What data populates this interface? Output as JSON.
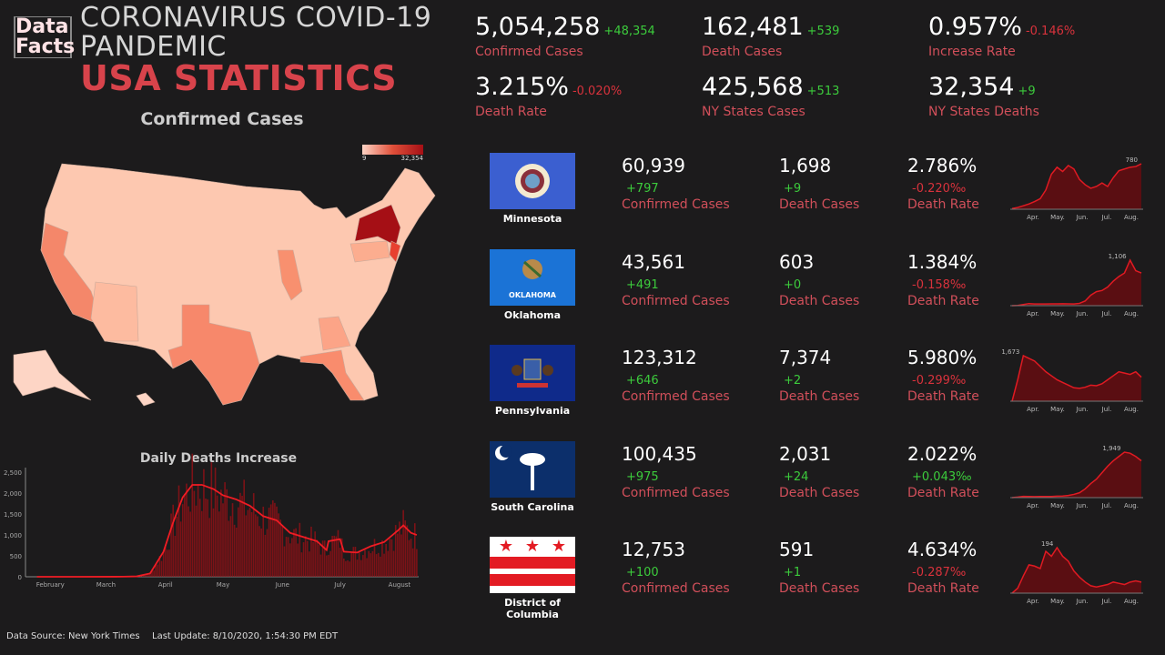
{
  "logo": {
    "line1": "Data",
    "line2": "Facts"
  },
  "header": {
    "title": "CORONAVIRUS COVID-19 PANDEMIC",
    "subtitle": "USA STATISTICS"
  },
  "colors": {
    "accent": "#d8434b",
    "positive": "#3ccb3c",
    "negative": "#d8323c",
    "label": "#d14f5a",
    "background": "#1c1b1c"
  },
  "map": {
    "title": "Confirmed Cases",
    "legend_min": "9",
    "legend_max": "32,354"
  },
  "stats": [
    {
      "value": "5,054,258",
      "delta": "+48,354",
      "delta_sign": "up",
      "label": "Confirmed Cases"
    },
    {
      "value": "162,481",
      "delta": "+539",
      "delta_sign": "up",
      "label": "Death Cases"
    },
    {
      "value": "0.957%",
      "delta": "-0.146%",
      "delta_sign": "down",
      "label": "Increase Rate"
    },
    {
      "value": "3.215%",
      "delta": "-0.020%",
      "delta_sign": "down",
      "label": "Death Rate"
    },
    {
      "value": "425,568",
      "delta": "+513",
      "delta_sign": "up",
      "label": "NY States Cases"
    },
    {
      "value": "32,354",
      "delta": "+9",
      "delta_sign": "up",
      "label": "NY States Deaths"
    }
  ],
  "states": [
    {
      "name": "Minnesota",
      "flag": "minnesota-flag",
      "cases": "60,939",
      "cases_delta": "+797",
      "deaths": "1,698",
      "deaths_delta": "+9",
      "rate": "2.786%",
      "rate_delta": "-0.220‰",
      "rate_sign": "down",
      "labels": [
        "Confirmed Cases",
        "Death Cases",
        "Death Rate"
      ],
      "peak": "780",
      "spark": [
        2,
        5,
        10,
        15,
        22,
        30,
        55,
        100,
        120,
        108,
        125,
        115,
        85,
        70,
        60,
        65,
        75,
        65,
        90,
        110,
        115,
        120,
        122,
        130
      ]
    },
    {
      "name": "Oklahoma",
      "flag": "oklahoma-flag",
      "flag_text": "OKLAHOMA",
      "cases": "43,561",
      "cases_delta": "+491",
      "deaths": "603",
      "deaths_delta": "+0",
      "rate": "1.384%",
      "rate_delta": "-0.158‰",
      "rate_sign": "down",
      "labels": [
        "Confirmed Cases",
        "Death Cases",
        "Death Rate"
      ],
      "peak": "1,106",
      "spark": [
        0,
        2,
        10,
        18,
        15,
        15,
        15,
        16,
        16,
        17,
        16,
        15,
        20,
        40,
        90,
        120,
        130,
        160,
        210,
        250,
        280,
        390,
        300,
        280
      ]
    },
    {
      "name": "Pennsylvania",
      "flag": "pennsylvania-flag",
      "cases": "123,312",
      "cases_delta": "+646",
      "deaths": "7,374",
      "deaths_delta": "+2",
      "rate": "5.980%",
      "rate_delta": "-0.299‰",
      "rate_sign": "down",
      "labels": [
        "Confirmed Cases",
        "Death Cases",
        "Death Rate"
      ],
      "peak": "1,673",
      "spark": [
        0,
        80,
        170,
        160,
        150,
        130,
        110,
        95,
        80,
        70,
        60,
        50,
        48,
        52,
        60,
        58,
        65,
        80,
        95,
        110,
        105,
        100,
        110,
        90
      ]
    },
    {
      "name": "South Carolina",
      "flag": "south-carolina-flag",
      "cases": "100,435",
      "cases_delta": "+975",
      "deaths": "2,031",
      "deaths_delta": "+24",
      "rate": "2.022%",
      "rate_delta": "+0.043‰",
      "rate_sign": "up",
      "labels": [
        "Confirmed Cases",
        "Death Cases",
        "Death Rate"
      ],
      "peak": "1,949",
      "spark": [
        0,
        5,
        12,
        10,
        9,
        10,
        10,
        11,
        14,
        15,
        20,
        30,
        45,
        80,
        130,
        170,
        230,
        290,
        340,
        380,
        420,
        410,
        380,
        340
      ]
    },
    {
      "name": "District of Columbia",
      "flag": "dc-flag",
      "cases": "12,753",
      "cases_delta": "+100",
      "deaths": "591",
      "deaths_delta": "+1",
      "rate": "4.634%",
      "rate_delta": "-0.287‰",
      "rate_sign": "down",
      "labels": [
        "Confirmed Cases",
        "Death Cases",
        "Death Rate"
      ],
      "peak": "194",
      "spark": [
        0,
        20,
        70,
        115,
        110,
        100,
        170,
        150,
        185,
        150,
        130,
        90,
        65,
        45,
        30,
        25,
        30,
        35,
        45,
        40,
        35,
        45,
        50,
        45
      ]
    }
  ],
  "spark_months": [
    "Apr.",
    "May.",
    "Jun.",
    "Jul.",
    "Aug."
  ],
  "chart_data": {
    "type": "bar",
    "title": "Daily Deaths Increase",
    "x_ticks": [
      "February",
      "March",
      "April",
      "May",
      "June",
      "July",
      "August"
    ],
    "y_ticks": [
      "0",
      "500",
      "1,000",
      "1,500",
      "2,000",
      "2,500"
    ],
    "ylim": [
      0,
      2700
    ],
    "series": [
      {
        "type": "line",
        "dates": [
          "2020-01-25",
          "2020-02-15",
          "2020-03-10",
          "2020-03-17",
          "2020-03-24",
          "2020-03-31",
          "2020-04-05",
          "2020-04-10",
          "2020-04-15",
          "2020-04-20",
          "2020-04-26",
          "2020-05-01",
          "2020-05-08",
          "2020-05-15",
          "2020-05-22",
          "2020-05-29",
          "2020-06-05",
          "2020-06-12",
          "2020-06-19",
          "2020-06-24",
          "2020-06-25",
          "2020-07-01",
          "2020-07-03",
          "2020-07-10",
          "2020-07-17",
          "2020-07-24",
          "2020-07-31",
          "2020-08-03",
          "2020-08-07",
          "2020-08-10"
        ],
        "values": [
          0,
          0,
          2,
          10,
          80,
          600,
          1300,
          1900,
          2200,
          2200,
          2100,
          1950,
          1850,
          1700,
          1450,
          1350,
          1050,
          950,
          850,
          640,
          850,
          900,
          600,
          580,
          730,
          830,
          1100,
          1230,
          1050,
          1000
        ]
      }
    ]
  },
  "footer": {
    "source": "Data Source: New York Times",
    "update": "Last Update: 8/10/2020, 1:54:30 PM EDT"
  }
}
